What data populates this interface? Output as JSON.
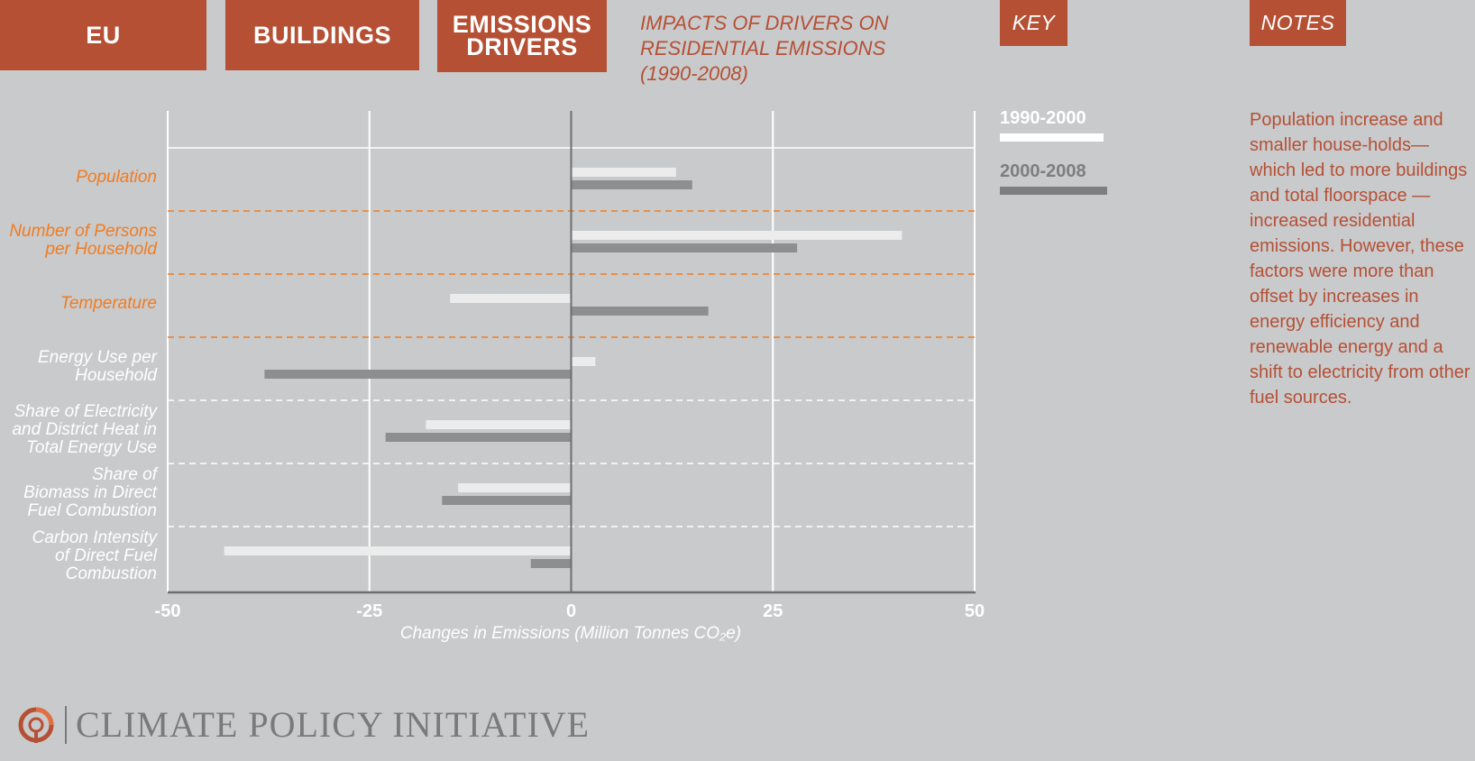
{
  "header": {
    "tabs": [
      {
        "label": "EU"
      },
      {
        "label": "BUILDINGS"
      },
      {
        "label": "EMISSIONS\nDRIVERS"
      }
    ],
    "title": "IMPACTS OF DRIVERS ON\nRESIDENTIAL EMISSIONS\n(1990-2008)",
    "key_label": "KEY",
    "notes_label": "NOTES"
  },
  "key": {
    "items": [
      {
        "label": "1990-2000",
        "color": "#ffffff"
      },
      {
        "label": "2000-2008",
        "color": "#7d7e80"
      }
    ]
  },
  "notes": {
    "text": "Population increase and smaller house-holds—which led to more buildings and total floorspace —increased residential emissions. However, these factors were more than offset by increases in energy efficiency and renewable energy and a shift to electricity from other fuel sources."
  },
  "colors": {
    "accent": "#b55035",
    "orange_label": "#f07c21",
    "white_label": "#ffffff",
    "bar_1990_2000": "#ececec",
    "bar_2000_2008": "#8d8e90",
    "zero_line": "#6e6e70",
    "background": "#c9cacc"
  },
  "chart_data": {
    "type": "bar",
    "orientation": "horizontal",
    "categories": [
      "Population",
      "Number of Persons\nper Household",
      "Temperature",
      "Energy Use per\nHousehold",
      "Share of Electricity\nand District Heat in\nTotal Energy Use",
      "Share of\nBiomass in Direct\nFuel Combustion",
      "Carbon Intensity\nof Direct Fuel\nCombustion"
    ],
    "category_colors": [
      "orange",
      "orange",
      "orange",
      "white",
      "white",
      "white",
      "white"
    ],
    "series": [
      {
        "name": "1990-2000",
        "values": [
          13,
          41,
          -15,
          3,
          -18,
          -14,
          -43
        ]
      },
      {
        "name": "2000-2008",
        "values": [
          15,
          28,
          17,
          -38,
          -23,
          -16,
          -5
        ]
      }
    ],
    "xlim": [
      -50,
      50
    ],
    "xticks": [
      -50,
      -25,
      0,
      25,
      50
    ],
    "xtick_labels": [
      "-50",
      "-25",
      "0",
      "25",
      "50"
    ],
    "xlabel": "Changes in Emissions (Million Tonnes CO₂e)",
    "grid": true
  },
  "footer": {
    "logo_text": "CLIMATE POLICY INITIATIVE"
  }
}
